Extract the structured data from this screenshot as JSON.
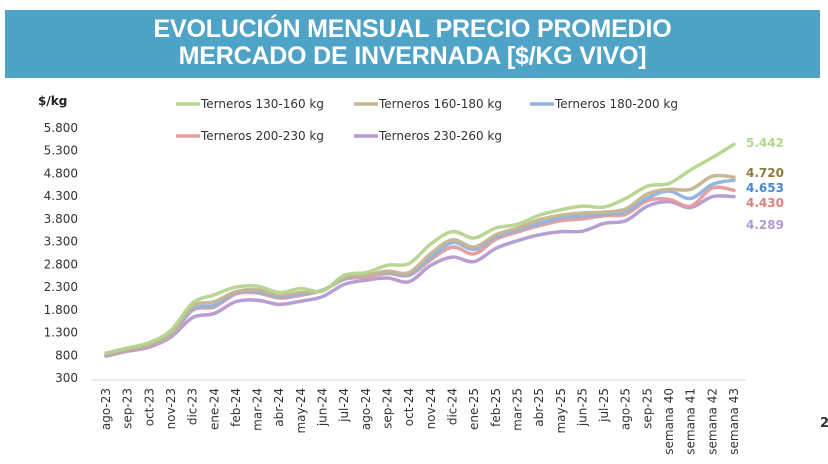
{
  "header": {
    "title_line1": "EVOLUCIÓN MENSUAL PRECIO PROMEDIO",
    "title_line2": "MERCADO DE INVERNADA [$/KG VIVO]",
    "band_color": "#4fa3c6"
  },
  "page_number": "2",
  "chart_data": {
    "type": "line",
    "title": "EVOLUCIÓN MENSUAL PRECIO PROMEDIO MERCADO DE INVERNADA [$/KG VIVO]",
    "xlabel": "",
    "ylabel": "$/kg",
    "ylim": [
      300,
      5800
    ],
    "yticks": [
      300,
      800,
      1300,
      1800,
      2300,
      2800,
      3300,
      3800,
      4300,
      4800,
      5300,
      5800
    ],
    "ytick_labels": [
      "300",
      "800",
      "1.300",
      "1.800",
      "2.300",
      "2.800",
      "3.300",
      "3.800",
      "4.300",
      "4.800",
      "5.300",
      "5.800"
    ],
    "grid": false,
    "legend_position": "top",
    "categories": [
      "ago-23",
      "sep-23",
      "oct-23",
      "nov-23",
      "dic-23",
      "ene-24",
      "feb-24",
      "mar-24",
      "abr-24",
      "may-24",
      "jun-24",
      "jul-24",
      "ago-24",
      "sep-24",
      "oct-24",
      "nov-24",
      "dic-24",
      "ene-25",
      "feb-25",
      "mar-25",
      "abr-25",
      "may-25",
      "jun-25",
      "jul-25",
      "ago-25",
      "sep-25",
      "semana 40",
      "semana 41",
      "semana 42",
      "semana 43"
    ],
    "series": [
      {
        "name": "Terneros 130-160 kg",
        "color": "#b5d48f",
        "label_color": "#b5d48f",
        "end_label": "5.442",
        "values": [
          850,
          960,
          1080,
          1350,
          1950,
          2130,
          2300,
          2320,
          2180,
          2270,
          2210,
          2560,
          2620,
          2780,
          2820,
          3250,
          3520,
          3380,
          3600,
          3680,
          3880,
          4000,
          4080,
          4060,
          4250,
          4520,
          4580,
          4880,
          5150,
          5442
        ]
      },
      {
        "name": "Terneros 160-180 kg",
        "color": "#c4b58f",
        "label_color": "#8c7a3e",
        "end_label": "4.720",
        "values": [
          830,
          940,
          1040,
          1280,
          1880,
          1980,
          2200,
          2240,
          2120,
          2180,
          2220,
          2510,
          2560,
          2650,
          2620,
          3040,
          3340,
          3180,
          3450,
          3600,
          3780,
          3880,
          3930,
          3950,
          4020,
          4350,
          4450,
          4450,
          4740,
          4720
        ]
      },
      {
        "name": "Terneros 180-200 kg",
        "color": "#8fb2df",
        "label_color": "#4a86d6",
        "end_label": "4.653",
        "values": [
          820,
          930,
          1030,
          1260,
          1820,
          1900,
          2180,
          2200,
          2090,
          2140,
          2230,
          2480,
          2560,
          2620,
          2580,
          2950,
          3280,
          3130,
          3400,
          3560,
          3700,
          3820,
          3870,
          3900,
          3960,
          4260,
          4410,
          4250,
          4560,
          4653
        ]
      },
      {
        "name": "Terneros 200-230 kg",
        "color": "#e39c9c",
        "label_color": "#e07f7f",
        "end_label": "4.430",
        "values": [
          800,
          910,
          1010,
          1240,
          1790,
          1860,
          2150,
          2170,
          2060,
          2120,
          2230,
          2470,
          2520,
          2600,
          2560,
          2900,
          3180,
          3030,
          3350,
          3510,
          3650,
          3760,
          3800,
          3870,
          3900,
          4200,
          4230,
          4080,
          4480,
          4430
        ]
      },
      {
        "name": "Terneros 230-260 kg",
        "color": "#b39ad1",
        "label_color": "#b39ad1",
        "end_label": "4.289",
        "values": [
          780,
          890,
          980,
          1200,
          1630,
          1720,
          1980,
          2010,
          1920,
          1990,
          2090,
          2360,
          2450,
          2500,
          2420,
          2780,
          2960,
          2860,
          3150,
          3320,
          3450,
          3520,
          3530,
          3700,
          3760,
          4080,
          4180,
          4050,
          4290,
          4289
        ]
      }
    ]
  }
}
